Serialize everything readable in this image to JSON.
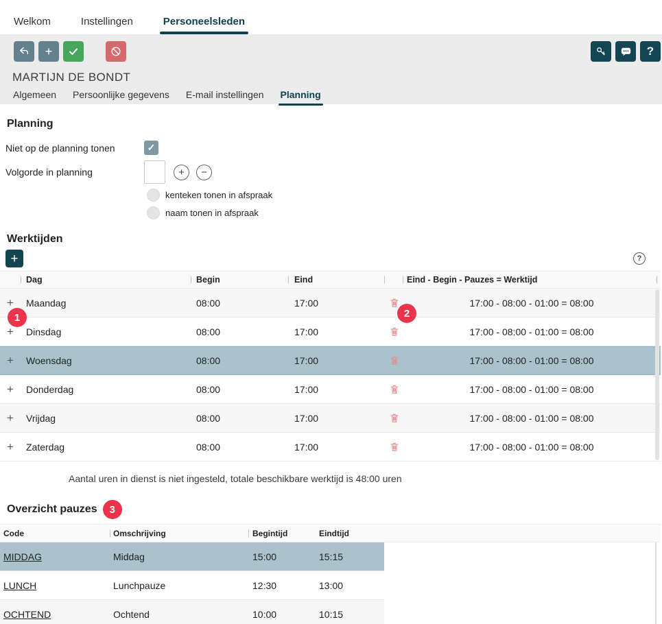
{
  "colors": {
    "accent_teal": "#11404e",
    "button_teal": "#134652",
    "button_slate": "#64808d",
    "button_green": "#46a65c",
    "button_red": "#d5696c",
    "badge_red": "#e9344b",
    "row_highlight": "#a9c2cb",
    "row_stripe": "#f7f7f7"
  },
  "main_tabs": [
    {
      "label": "Welkom",
      "active": false
    },
    {
      "label": "Instellingen",
      "active": false
    },
    {
      "label": "Personeelsleden",
      "active": true
    }
  ],
  "toolbar": {
    "left_icons": [
      "back-icon",
      "add-icon",
      "confirm-icon",
      "cancel-icon"
    ],
    "right_icons": [
      "key-icon",
      "chat-icon",
      "help-icon"
    ],
    "help_glyph": "?"
  },
  "record_title": "MARTIJN DE BONDT",
  "sub_tabs": [
    {
      "label": "Algemeen",
      "active": false
    },
    {
      "label": "Persoonlijke gegevens",
      "active": false
    },
    {
      "label": "E-mail instellingen",
      "active": false
    },
    {
      "label": "Planning",
      "active": true
    }
  ],
  "planning_form": {
    "heading": "Planning",
    "hide_checkbox": {
      "label": "Niet op de planning tonen",
      "checked": true,
      "check_glyph": "✓"
    },
    "order_field": {
      "label": "Volgorde in planning",
      "value": "",
      "plus_glyph": "+",
      "minus_glyph": "−"
    },
    "options": [
      {
        "label": "kenteken tonen in afspraak",
        "checked": false
      },
      {
        "label": "naam tonen in afspraak",
        "checked": false
      }
    ]
  },
  "werktijden": {
    "heading": "Werktijden",
    "add_glyph": "+",
    "help_glyph": "?",
    "columns": [
      "Dag",
      "Begin",
      "Eind",
      "",
      "Eind - Begin - Pauzes = Werktijd"
    ],
    "expand_glyph": "+",
    "rows": [
      {
        "dag": "Maandag",
        "begin": "08:00",
        "eind": "17:00",
        "formula": "17:00 - 08:00 - 01:00 = 08:00",
        "selected": false
      },
      {
        "dag": "Dinsdag",
        "begin": "08:00",
        "eind": "17:00",
        "formula": "17:00 - 08:00 - 01:00 = 08:00",
        "selected": false
      },
      {
        "dag": "Woensdag",
        "begin": "08:00",
        "eind": "17:00",
        "formula": "17:00 - 08:00 - 01:00 = 08:00",
        "selected": true
      },
      {
        "dag": "Donderdag",
        "begin": "08:00",
        "eind": "17:00",
        "formula": "17:00 - 08:00 - 01:00 = 08:00",
        "selected": false
      },
      {
        "dag": "Vrijdag",
        "begin": "08:00",
        "eind": "17:00",
        "formula": "17:00 - 08:00 - 01:00 = 08:00",
        "selected": false
      },
      {
        "dag": "Zaterdag",
        "begin": "08:00",
        "eind": "17:00",
        "formula": "17:00 - 08:00 - 01:00 = 08:00",
        "selected": false
      }
    ],
    "footer_note": "Aantal uren in dienst is niet ingesteld, totale beschikbare werktijd is 48:00 uren"
  },
  "pauzes": {
    "heading": "Overzicht pauzes",
    "columns": [
      "Code",
      "Omschrijving",
      "Begintijd",
      "Eindtijd"
    ],
    "rows": [
      {
        "code": "MIDDAG",
        "omschrijving": "Middag",
        "begintijd": "15:00",
        "eindtijd": "15:15",
        "selected": true
      },
      {
        "code": "LUNCH",
        "omschrijving": "Lunchpauze",
        "begintijd": "12:30",
        "eindtijd": "13:00",
        "selected": false
      },
      {
        "code": "OCHTEND",
        "omschrijving": "Ochtend",
        "begintijd": "10:00",
        "eindtijd": "10:15",
        "selected": false
      }
    ]
  },
  "annotations": {
    "badges": [
      {
        "n": "1"
      },
      {
        "n": "2"
      },
      {
        "n": "3"
      }
    ]
  }
}
